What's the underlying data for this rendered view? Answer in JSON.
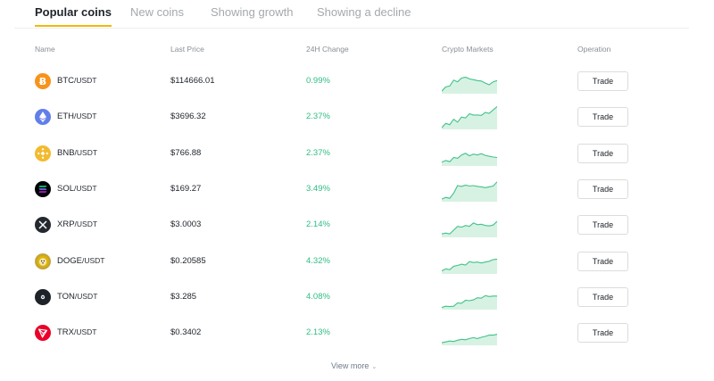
{
  "tabs": [
    {
      "label": "Popular coins",
      "active": true
    },
    {
      "label": "New coins"
    },
    {
      "label": "Showing growth"
    },
    {
      "label": "Showing a decline"
    }
  ],
  "table": {
    "headers": {
      "name": "Name",
      "last_price": "Last Price",
      "change_24h": "24H Change",
      "crypto_markets": "Crypto Markets",
      "operation": "Operation"
    },
    "rows": [
      {
        "base": "BTC",
        "quote": "/USDT",
        "price": "$114666.01",
        "change": "0.99%",
        "icon": "bitcoin-icon",
        "color": "#f7931a",
        "spark": [
          4,
          14,
          16,
          30,
          26,
          35,
          37,
          33,
          31,
          29,
          28,
          23,
          19,
          26,
          29
        ]
      },
      {
        "base": "ETH",
        "quote": "/USDT",
        "price": "$3696.32",
        "change": "2.37%",
        "icon": "ethereum-icon",
        "color": "#627eea",
        "spark": [
          2,
          12,
          9,
          22,
          15,
          27,
          25,
          35,
          32,
          32,
          31,
          38,
          36,
          44,
          52
        ]
      },
      {
        "base": "BNB",
        "quote": "/USDT",
        "price": "$766.88",
        "change": "2.37%",
        "icon": "bnb-icon",
        "color": "#f3ba2f",
        "spark": [
          7,
          11,
          8,
          18,
          16,
          24,
          28,
          22,
          26,
          24,
          27,
          23,
          21,
          19,
          18
        ]
      },
      {
        "base": "SOL",
        "quote": "/USDT",
        "price": "$169.27",
        "change": "3.49%",
        "icon": "solana-icon",
        "color": "#000000",
        "spark": [
          4,
          8,
          6,
          18,
          36,
          34,
          37,
          35,
          36,
          34,
          33,
          31,
          33,
          35,
          45
        ]
      },
      {
        "base": "XRP",
        "quote": "/USDT",
        "price": "$3.0003",
        "change": "2.14%",
        "icon": "xrp-icon",
        "color": "#23292f",
        "spark": [
          6,
          8,
          6,
          15,
          24,
          22,
          26,
          24,
          32,
          28,
          29,
          26,
          25,
          27,
          36
        ]
      },
      {
        "base": "DOGE",
        "quote": "/USDT",
        "price": "$0.20585",
        "change": "4.32%",
        "icon": "dogecoin-icon",
        "color": "#c2a633",
        "spark": [
          5,
          10,
          8,
          16,
          18,
          21,
          19,
          27,
          25,
          26,
          24,
          26,
          28,
          32,
          33
        ]
      },
      {
        "base": "TON",
        "quote": "/USDT",
        "price": "$3.285",
        "change": "4.08%",
        "icon": "ton-icon",
        "color": "#1e2329",
        "spark": [
          3,
          6,
          5,
          6,
          14,
          13,
          20,
          19,
          21,
          26,
          25,
          31,
          29,
          30,
          30
        ]
      },
      {
        "base": "TRX",
        "quote": "/USDT",
        "price": "$0.3402",
        "change": "2.13%",
        "icon": "tron-icon",
        "color": "#eb0029",
        "spark": [
          4,
          6,
          8,
          7,
          10,
          12,
          11,
          14,
          16,
          14,
          17,
          19,
          22,
          22,
          24
        ]
      }
    ],
    "trade_label": "Trade"
  },
  "footer": {
    "view_more": "View more"
  },
  "colors": {
    "accent": "#f0b90b",
    "positive": "#2ebd85",
    "spark_fill": "#d7f2e3",
    "spark_line": "#41c28a"
  }
}
